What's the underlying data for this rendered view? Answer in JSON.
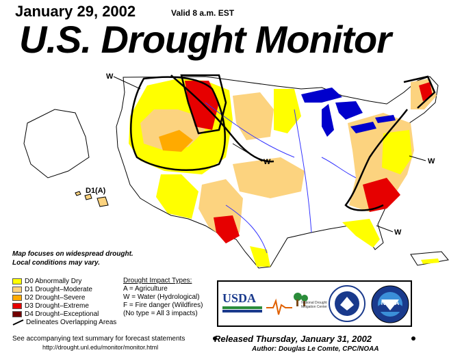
{
  "header": {
    "date": "January 29, 2002",
    "valid": "Valid 8 a.m. EST",
    "title": "U.S. Drought Monitor"
  },
  "map": {
    "impact_labels": [
      "W",
      "W",
      "W",
      "W"
    ],
    "hawaii_label": "D1(A)"
  },
  "notes": {
    "line1": "Map focuses on widespread drought.",
    "line2": "Local conditions may vary."
  },
  "legend": {
    "items": [
      {
        "label": "D0 Abnormally Dry",
        "color": "#ffff00"
      },
      {
        "label": "D1 Drought–Moderate",
        "color": "#fcd37f"
      },
      {
        "label": "D2 Drought–Severe",
        "color": "#ffaa00"
      },
      {
        "label": "D3 Drought–Extreme",
        "color": "#e60000"
      },
      {
        "label": "D4 Drought–Exceptional",
        "color": "#730000"
      }
    ],
    "overlap_label": "Delineates Overlapping Areas"
  },
  "impacts": {
    "title": "Drought Impact Types:",
    "a": "A = Agriculture",
    "w": "W = Water (Hydrological)",
    "f": "F = Fire danger (Wildfires)",
    "none": "(No type = All 3 impacts)"
  },
  "logos": {
    "usda": "USDA",
    "ndmc": "National Drought Mitigation Center",
    "noaa": "NOAA"
  },
  "footer": {
    "see_text": "See accompanying text summary for forecast statements",
    "url": "http://drought.unl.edu/monitor/monitor.html",
    "released": "Released Thursday, January 31, 2002",
    "author": "Author:  Douglas Le Comte, CPC/NOAA"
  },
  "colors": {
    "d0": "#ffff00",
    "d1": "#fcd37f",
    "d2": "#ffaa00",
    "d3": "#e60000",
    "d4": "#730000",
    "water": "#0000cc",
    "rivers": "#3333ff"
  }
}
